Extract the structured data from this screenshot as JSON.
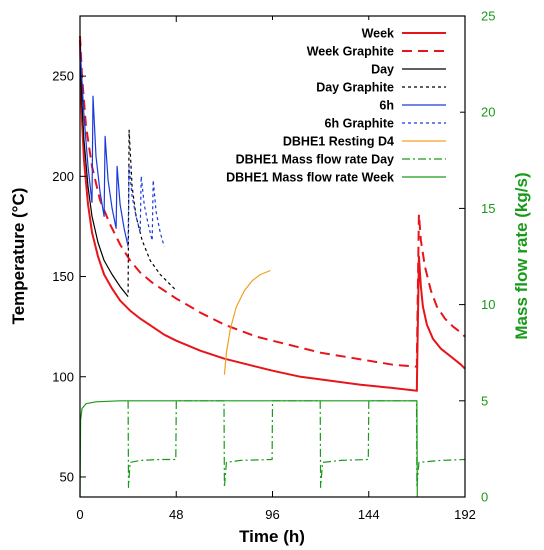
{
  "chart_data": {
    "type": "line",
    "xlabel": "Time (h)",
    "ylabel": "Temperature (°C)",
    "y2label": "Mass flow rate (kg/s)",
    "xlim": [
      0,
      192
    ],
    "ylim": [
      40,
      280
    ],
    "y2lim": [
      0,
      25
    ],
    "xticks": [
      0,
      48,
      96,
      144,
      192
    ],
    "yticks": [
      50,
      100,
      150,
      200,
      250
    ],
    "y2ticks": [
      0,
      5,
      10,
      15,
      20,
      25
    ],
    "legend_position": "top-right",
    "series": [
      {
        "name": "Week",
        "color": "#e8141a",
        "dash": "solid",
        "axis": "left",
        "points": [
          [
            0,
            268
          ],
          [
            0.5,
            245
          ],
          [
            1,
            228
          ],
          [
            2,
            208
          ],
          [
            4,
            186
          ],
          [
            6,
            172
          ],
          [
            9,
            160
          ],
          [
            12,
            151
          ],
          [
            16,
            144
          ],
          [
            20,
            138
          ],
          [
            25,
            133
          ],
          [
            30,
            129
          ],
          [
            36,
            125
          ],
          [
            42,
            121
          ],
          [
            48,
            118
          ],
          [
            60,
            113
          ],
          [
            72,
            109
          ],
          [
            84,
            106
          ],
          [
            96,
            103
          ],
          [
            110,
            100
          ],
          [
            125,
            98
          ],
          [
            140,
            96
          ],
          [
            155,
            94.5
          ],
          [
            168,
            93
          ],
          [
            168,
            96
          ],
          [
            169,
            160
          ],
          [
            170,
            145
          ],
          [
            171,
            135
          ],
          [
            173,
            126
          ],
          [
            176,
            119
          ],
          [
            180,
            114
          ],
          [
            185,
            110
          ],
          [
            190,
            106
          ],
          [
            192,
            104
          ]
        ]
      },
      {
        "name": "Week Graphite",
        "color": "#e8141a",
        "dash": "dash",
        "axis": "left",
        "points": [
          [
            0,
            270
          ],
          [
            1,
            250
          ],
          [
            3,
            225
          ],
          [
            6,
            205
          ],
          [
            10,
            188
          ],
          [
            15,
            176
          ],
          [
            20,
            166
          ],
          [
            25,
            158
          ],
          [
            30,
            152
          ],
          [
            36,
            147
          ],
          [
            42,
            143
          ],
          [
            48,
            139
          ],
          [
            55,
            135
          ],
          [
            60,
            132
          ],
          [
            66,
            129
          ],
          [
            72,
            126
          ],
          [
            80,
            123
          ],
          [
            88,
            120
          ],
          [
            96,
            118
          ],
          [
            108,
            115
          ],
          [
            120,
            112
          ],
          [
            132,
            110
          ],
          [
            144,
            108
          ],
          [
            156,
            106
          ],
          [
            168,
            105
          ],
          [
            168,
            110
          ],
          [
            169,
            181
          ],
          [
            170,
            168
          ],
          [
            172,
            155
          ],
          [
            175,
            143
          ],
          [
            178,
            135
          ],
          [
            182,
            129
          ],
          [
            186,
            125
          ],
          [
            190,
            122
          ],
          [
            192,
            120
          ]
        ]
      },
      {
        "name": "Day",
        "color": "#000000",
        "dash": "solid",
        "axis": "left",
        "points": [
          [
            0,
            268
          ],
          [
            1,
            236
          ],
          [
            2,
            218
          ],
          [
            4,
            195
          ],
          [
            6,
            180
          ],
          [
            9,
            167
          ],
          [
            12,
            158
          ],
          [
            16,
            151
          ],
          [
            20,
            145
          ],
          [
            24,
            140
          ]
        ]
      },
      {
        "name": "Day Graphite",
        "color": "#000000",
        "dash": "dot",
        "axis": "left",
        "points": [
          [
            24,
            142
          ],
          [
            24.5,
            223
          ],
          [
            26,
            195
          ],
          [
            28,
            180
          ],
          [
            31,
            168
          ],
          [
            35,
            158
          ],
          [
            40,
            151
          ],
          [
            48,
            143
          ]
        ]
      },
      {
        "name": "6h",
        "color": "#1a3adb",
        "dash": "solid",
        "axis": "left",
        "points": [
          [
            0,
            265
          ],
          [
            2,
            230
          ],
          [
            4,
            205
          ],
          [
            6,
            187
          ],
          [
            6.5,
            240
          ],
          [
            8,
            210
          ],
          [
            10,
            192
          ],
          [
            12,
            180
          ],
          [
            12.5,
            220
          ],
          [
            14,
            198
          ],
          [
            16,
            184
          ],
          [
            18,
            174
          ],
          [
            18.5,
            205
          ],
          [
            20,
            186
          ],
          [
            22,
            174
          ],
          [
            24,
            165
          ]
        ]
      },
      {
        "name": "6h Graphite",
        "color": "#1a3adb",
        "dash": "dot",
        "axis": "left",
        "points": [
          [
            24,
            168
          ],
          [
            24.5,
            205
          ],
          [
            26,
            190
          ],
          [
            28,
            180
          ],
          [
            30,
            172
          ],
          [
            30.5,
            200
          ],
          [
            32,
            186
          ],
          [
            34,
            176
          ],
          [
            36,
            168
          ],
          [
            36.5,
            198
          ],
          [
            38,
            182
          ],
          [
            40,
            172
          ],
          [
            42,
            165
          ]
        ]
      },
      {
        "name": "DBHE1 Resting D4",
        "color": "#f0a020",
        "dash": "solid",
        "axis": "left",
        "points": [
          [
            72,
            101
          ],
          [
            73,
            112
          ],
          [
            75,
            124
          ],
          [
            78,
            135
          ],
          [
            82,
            143
          ],
          [
            86,
            148
          ],
          [
            90,
            151
          ],
          [
            95,
            153
          ]
        ]
      },
      {
        "name": "DBHE1 Mass flow rate Day",
        "color": "#1a9a1a",
        "dash": "dashdot",
        "axis": "right",
        "points": [
          [
            24,
            5
          ],
          [
            24.2,
            0.5
          ],
          [
            25,
            1.8
          ],
          [
            30,
            1.9
          ],
          [
            40,
            1.95
          ],
          [
            47.8,
            1.95
          ],
          [
            48,
            5
          ],
          [
            71.8,
            5
          ],
          [
            72,
            0.5
          ],
          [
            73,
            1.8
          ],
          [
            80,
            1.9
          ],
          [
            95.8,
            1.95
          ],
          [
            96,
            5
          ],
          [
            119.8,
            5
          ],
          [
            120,
            0.5
          ],
          [
            121,
            1.8
          ],
          [
            130,
            1.9
          ],
          [
            143.8,
            1.95
          ],
          [
            144,
            5
          ],
          [
            167.8,
            5
          ],
          [
            168,
            0.5
          ],
          [
            169,
            1.8
          ],
          [
            180,
            1.9
          ],
          [
            192,
            1.95
          ]
        ]
      },
      {
        "name": "DBHE1 Mass flow rate Week",
        "color": "#1a9a1a",
        "dash": "solid",
        "axis": "right",
        "points": [
          [
            0,
            0
          ],
          [
            0.3,
            4
          ],
          [
            1,
            4.6
          ],
          [
            3,
            4.85
          ],
          [
            8,
            4.95
          ],
          [
            20,
            5
          ],
          [
            168,
            5
          ],
          [
            168.2,
            0
          ]
        ]
      }
    ]
  }
}
